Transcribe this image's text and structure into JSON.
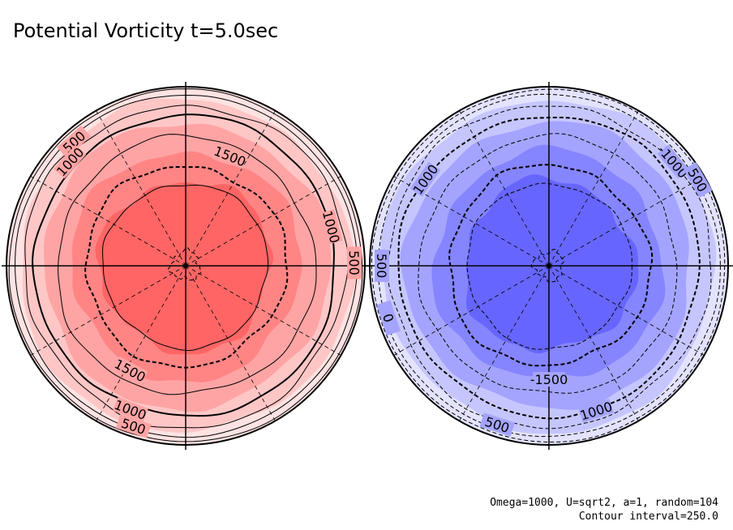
{
  "title": "Potential Vorticity t=5.0sec",
  "footer": {
    "params": "Omega=1000, U=sqrt2, a=1, random=104",
    "contour_interval": "Contour interval=250.0"
  },
  "colors": {
    "north_fills": [
      "#ffe3e3",
      "#ffc6c6",
      "#ffa4a4",
      "#ff8585",
      "#ff6565",
      "#ff4444"
    ],
    "south_fills": [
      "#e3e3ff",
      "#c6c6ff",
      "#a4a4ff",
      "#8585ff",
      "#6666ff",
      "#4444ff"
    ],
    "line": "#000000"
  },
  "chart_data": [
    {
      "type": "contour",
      "hemisphere": "north",
      "projection": "polar",
      "field": "potential vorticity",
      "contour_levels": [
        250,
        500,
        750,
        1000,
        1250,
        1500,
        1750,
        2000
      ],
      "contour_labels": [
        "500",
        "1000",
        "1000",
        "1500",
        "1500",
        "500",
        "1000",
        "500"
      ]
    },
    {
      "type": "contour",
      "hemisphere": "south",
      "projection": "polar",
      "field": "potential vorticity",
      "contour_levels": [
        -250,
        -500,
        -750,
        -1000,
        -1250,
        -1500,
        -1750,
        -2000
      ],
      "contour_labels": [
        "500",
        "1000",
        "500",
        "-1000",
        "-1500",
        "1000",
        "500",
        "0"
      ]
    }
  ]
}
